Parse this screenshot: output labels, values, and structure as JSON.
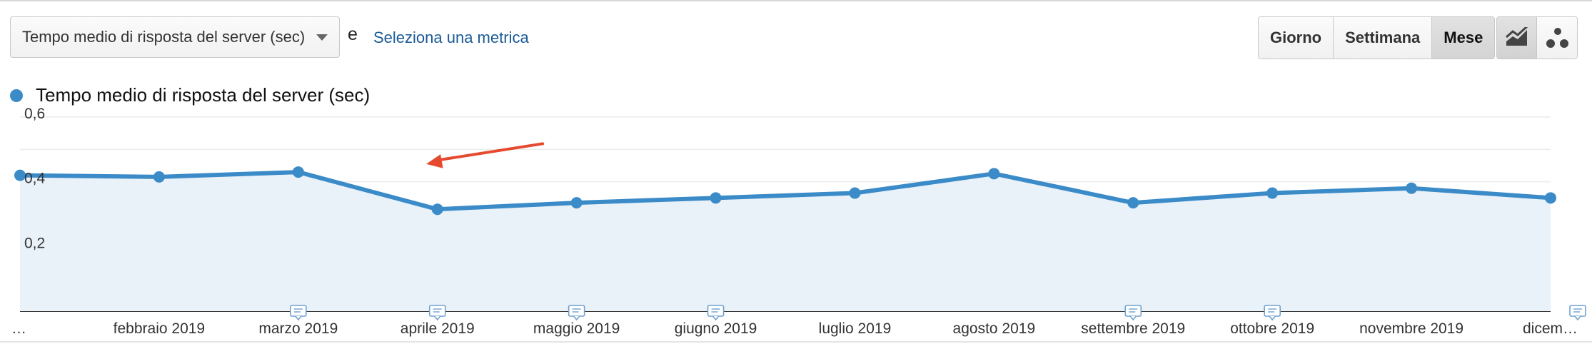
{
  "toolbar": {
    "metric_label": "Tempo medio di risposta del server (sec)",
    "conjunction": "e",
    "select_metric_link": "Seleziona una metrica",
    "periods": [
      {
        "label": "Giorno",
        "active": false
      },
      {
        "label": "Settimana",
        "active": false
      },
      {
        "label": "Mese",
        "active": true
      }
    ],
    "view_buttons": [
      {
        "icon": "line-chart-icon",
        "active": true
      },
      {
        "icon": "motion-chart-icon",
        "active": false
      }
    ]
  },
  "colors": {
    "series": "#3b8bc8",
    "area": "#e9f1f9",
    "arrow": "#e64a2e",
    "link": "#1a5a96"
  },
  "chart_data": {
    "type": "area",
    "series": [
      {
        "name": "Tempo medio di risposta del server (sec)",
        "values": [
          0.42,
          0.415,
          0.43,
          0.315,
          0.335,
          0.35,
          0.365,
          0.425,
          0.335,
          0.365,
          0.38,
          0.35
        ]
      }
    ],
    "x_labels": [
      "…",
      "febbraio 2019",
      "marzo 2019",
      "aprile 2019",
      "maggio 2019",
      "giugno 2019",
      "luglio 2019",
      "agosto 2019",
      "settembre 2019",
      "ottobre 2019",
      "novembre 2019",
      "dicem…"
    ],
    "y_ticks": [
      "0,6",
      "0,4",
      "0,2"
    ],
    "y_tick_values": [
      0.6,
      0.4,
      0.2
    ],
    "ylim": [
      0,
      0.6
    ],
    "grid": true,
    "annotations_at_index": [
      2,
      3,
      4,
      5,
      8,
      9,
      11
    ],
    "arrow_annotation": "pointing to drop between marzo 2019 and aprile 2019"
  }
}
